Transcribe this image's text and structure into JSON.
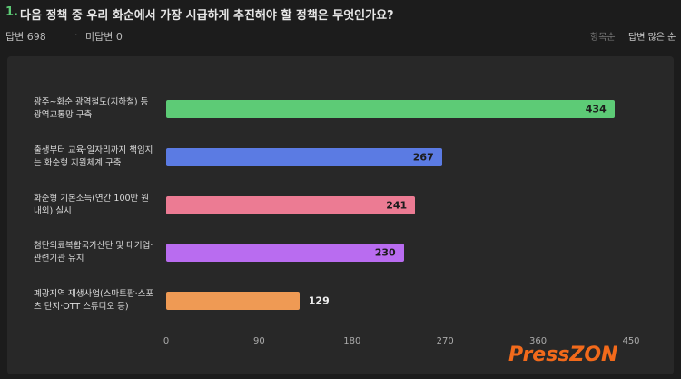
{
  "header": {
    "number": "1.",
    "question": "다음 정책 중 우리 화순에서 가장 시급하게 추진해야 할 정책은 무엇인가요?",
    "answered": "답변 698",
    "separator": "·",
    "unanswered": "미답변 0",
    "sort_item": "항목순",
    "sort_count": "답변 많은 순"
  },
  "watermark": "PressZON",
  "chart_data": {
    "type": "bar",
    "orientation": "horizontal",
    "categories": [
      "광주~화순 광역철도(지하철) 등 광역교통망 구축",
      "출생부터 교육·일자리까지 책임지는 화순형 지원체계 구축",
      "화순형 기본소득(연간 100만 원 내외) 실시",
      "첨단의료복합국가산단 및 대기업·관련기관 유치",
      "폐광지역 재생사업(스마트팜·스포츠 단지·OTT 스튜디오 등)"
    ],
    "values": [
      434,
      267,
      241,
      230,
      129
    ],
    "colors": [
      "#5dcb76",
      "#5b7be3",
      "#ec7b93",
      "#b96cf0",
      "#ef9a54"
    ],
    "xlim": [
      0,
      450
    ],
    "xticks": [
      0,
      90,
      180,
      270,
      360,
      450
    ],
    "grid": false
  }
}
